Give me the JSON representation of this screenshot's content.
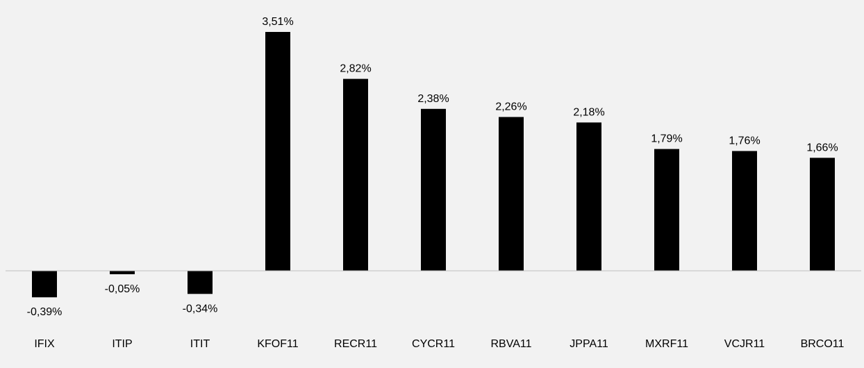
{
  "chart_data": {
    "type": "bar",
    "categories": [
      "IFIX",
      "ITIP",
      "ITIT",
      "KFOF11",
      "RECR11",
      "CYCR11",
      "RBVA11",
      "JPPA11",
      "MXRF11",
      "VCJR11",
      "BRCO11"
    ],
    "values": [
      -0.39,
      -0.05,
      -0.34,
      3.51,
      2.82,
      2.38,
      2.26,
      2.18,
      1.79,
      1.76,
      1.66
    ],
    "value_labels": [
      "-0,39%",
      "-0,05%",
      "-0,34%",
      "3,51%",
      "2,82%",
      "2,38%",
      "2,26%",
      "2,18%",
      "1,79%",
      "1,76%",
      "1,66%"
    ],
    "title": "",
    "xlabel": "",
    "ylabel": "",
    "ylim": [
      -0.4,
      3.6
    ],
    "grid": false,
    "legend": "none",
    "colors": {
      "bar": "#000000",
      "background": "#f2f2f2",
      "axis": "#bfbfbf",
      "text": "#000000"
    }
  }
}
